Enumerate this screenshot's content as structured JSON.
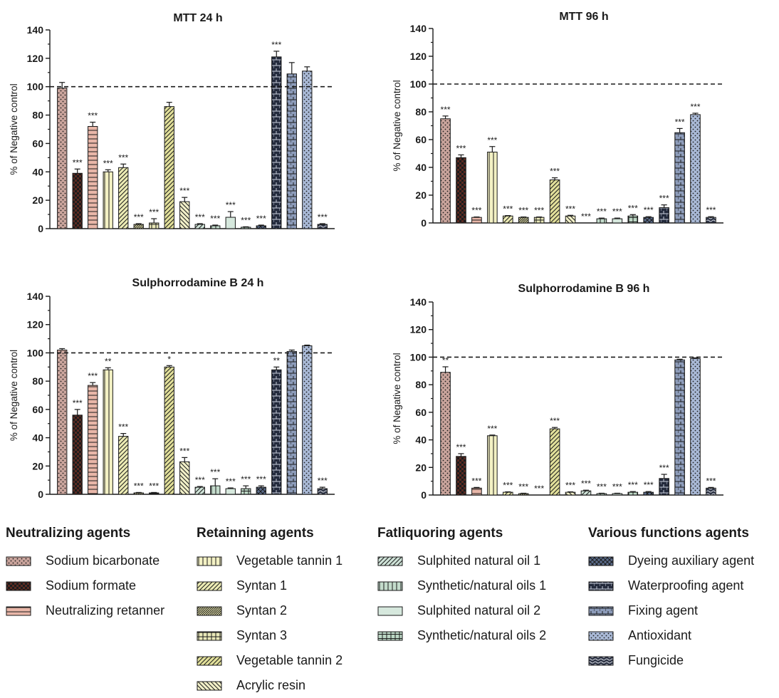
{
  "chart_data": [
    {
      "type": "bar",
      "title": "MTT 24 h",
      "ylabel": "% of Negative control",
      "ylim": [
        0,
        140
      ],
      "yticks": [
        "0",
        "20",
        "40",
        "60",
        "80",
        "100",
        "120",
        "140"
      ],
      "reference_line": 100,
      "values": [
        99,
        39,
        72,
        40,
        43,
        3,
        4,
        86,
        19,
        3,
        2,
        8,
        1,
        2,
        121,
        109,
        111,
        3
      ],
      "errors": [
        4,
        3,
        3,
        1.5,
        2.5,
        0.5,
        3,
        3,
        3,
        0.5,
        0.5,
        4,
        0.3,
        0.5,
        4,
        8,
        3,
        0.5
      ],
      "labels": [
        "",
        "***",
        "***",
        "***",
        "***",
        "***",
        "***",
        "",
        "***",
        "***",
        "***",
        "***",
        "***",
        "***",
        "***",
        "",
        "",
        "***"
      ]
    },
    {
      "type": "bar",
      "title": "MTT 96 h",
      "ylabel": "% of Negative control",
      "ylim": [
        0,
        140
      ],
      "yticks": [
        "0",
        "20",
        "40",
        "60",
        "80",
        "100",
        "120",
        "140"
      ],
      "reference_line": 100,
      "values": [
        75,
        47,
        4,
        51,
        5,
        4,
        4,
        31,
        5,
        0,
        3,
        3,
        5,
        4,
        11,
        65,
        78,
        4
      ],
      "errors": [
        2,
        2,
        0.3,
        4,
        0.3,
        0.3,
        0.3,
        1.5,
        0.5,
        0,
        0.5,
        0.5,
        1,
        0.5,
        2,
        3,
        1,
        0.5
      ],
      "labels": [
        "***",
        "***",
        "***",
        "***",
        "***",
        "***",
        "***",
        "***",
        "***",
        "***",
        "***",
        "***",
        "***",
        "***",
        "***",
        "***",
        "***",
        "***"
      ]
    },
    {
      "type": "bar",
      "title": "Sulphorrodamine B 24 h",
      "ylabel": "% of Negative control",
      "ylim": [
        0,
        140
      ],
      "yticks": [
        "0",
        "20",
        "40",
        "60",
        "80",
        "100",
        "120",
        "140"
      ],
      "reference_line": 100,
      "values": [
        102,
        56,
        77,
        88,
        41,
        1,
        1,
        90,
        23,
        5,
        6,
        4,
        4,
        5,
        88,
        101,
        105,
        4
      ],
      "errors": [
        1,
        4,
        2,
        1.5,
        2,
        0.3,
        0.3,
        1,
        3,
        0.5,
        5,
        0.5,
        2,
        1,
        2,
        1,
        0.5,
        1
      ],
      "labels": [
        "",
        "***",
        "***",
        "**",
        "***",
        "***",
        "***",
        "*",
        "***",
        "***",
        "***",
        "***",
        "***",
        "***",
        "**",
        "",
        "",
        "***"
      ]
    },
    {
      "type": "bar",
      "title": "Sulphorrodamine B 96 h",
      "ylabel": "% of Negative control",
      "ylim": [
        0,
        140
      ],
      "yticks": [
        "0",
        "20",
        "40",
        "60",
        "80",
        "100",
        "120",
        "140"
      ],
      "reference_line": 100,
      "values": [
        89,
        28,
        5,
        43,
        2,
        1,
        0,
        48,
        2,
        3,
        1,
        1,
        2,
        2,
        12,
        98,
        99,
        5
      ],
      "errors": [
        4,
        2,
        0.5,
        0.5,
        0.3,
        0.3,
        0,
        1,
        0.3,
        0.5,
        0.3,
        0.3,
        0.5,
        0.5,
        3,
        0.5,
        0.5,
        0.5
      ],
      "labels": [
        "**",
        "***",
        "***",
        "***",
        "***",
        "***",
        "***",
        "***",
        "***",
        "***",
        "***",
        "***",
        "***",
        "***",
        "***",
        "",
        "",
        "***"
      ]
    }
  ],
  "legend": {
    "groups": [
      {
        "title": "Neutralizing agents",
        "items": [
          {
            "label": "Sodium bicarbonate",
            "color": "#c9a49c",
            "pattern": "dots"
          },
          {
            "label": "Sodium formate",
            "color": "#5a2a22",
            "pattern": "checker"
          },
          {
            "label": "Neutralizing retanner",
            "color": "#e8b6a8",
            "pattern": "hlines"
          }
        ]
      },
      {
        "title": "Retainning agents",
        "items": [
          {
            "label": "Vegetable tannin 1",
            "color": "#f3f1c4",
            "pattern": "vlines"
          },
          {
            "label": "Syntan 1",
            "color": "#ecebb4",
            "pattern": "diag"
          },
          {
            "label": "Syntan 2",
            "color": "#dedca6",
            "pattern": "diag-dense"
          },
          {
            "label": "Syntan 3",
            "color": "#e9e8b8",
            "pattern": "grid"
          },
          {
            "label": "Vegetable tannin 2",
            "color": "#e2e09a",
            "pattern": "diag"
          },
          {
            "label": "Acrylic resin",
            "color": "#f2f0c8",
            "pattern": "back-diag"
          }
        ]
      },
      {
        "title": "Fatliquoring agents",
        "items": [
          {
            "label": "Sulphited natural oil 1",
            "color": "#cfe3d8",
            "pattern": "diag"
          },
          {
            "label": "Synthetic/natural oils 1",
            "color": "#c4dccc",
            "pattern": "vlines"
          },
          {
            "label": "Sulphited natural oil 2",
            "color": "#d6e8dd",
            "pattern": "solid"
          },
          {
            "label": "Synthetic/natural oils 2",
            "color": "#bcd7c5",
            "pattern": "vlines-sparse"
          }
        ]
      },
      {
        "title": "Various functions agents",
        "items": [
          {
            "label": "Dyeing auxiliary agent",
            "color": "#5b6c8c",
            "pattern": "cross"
          },
          {
            "label": "Waterproofing agent",
            "color": "#232a3c",
            "pattern": "bricks"
          },
          {
            "label": "Fixing agent",
            "color": "#8d9cba",
            "pattern": "bricks-light"
          },
          {
            "label": "Antioxidant",
            "color": "#a9b9d6",
            "pattern": "dots"
          },
          {
            "label": "Fungicide",
            "color": "#2d3344",
            "pattern": "waves"
          }
        ]
      }
    ]
  }
}
